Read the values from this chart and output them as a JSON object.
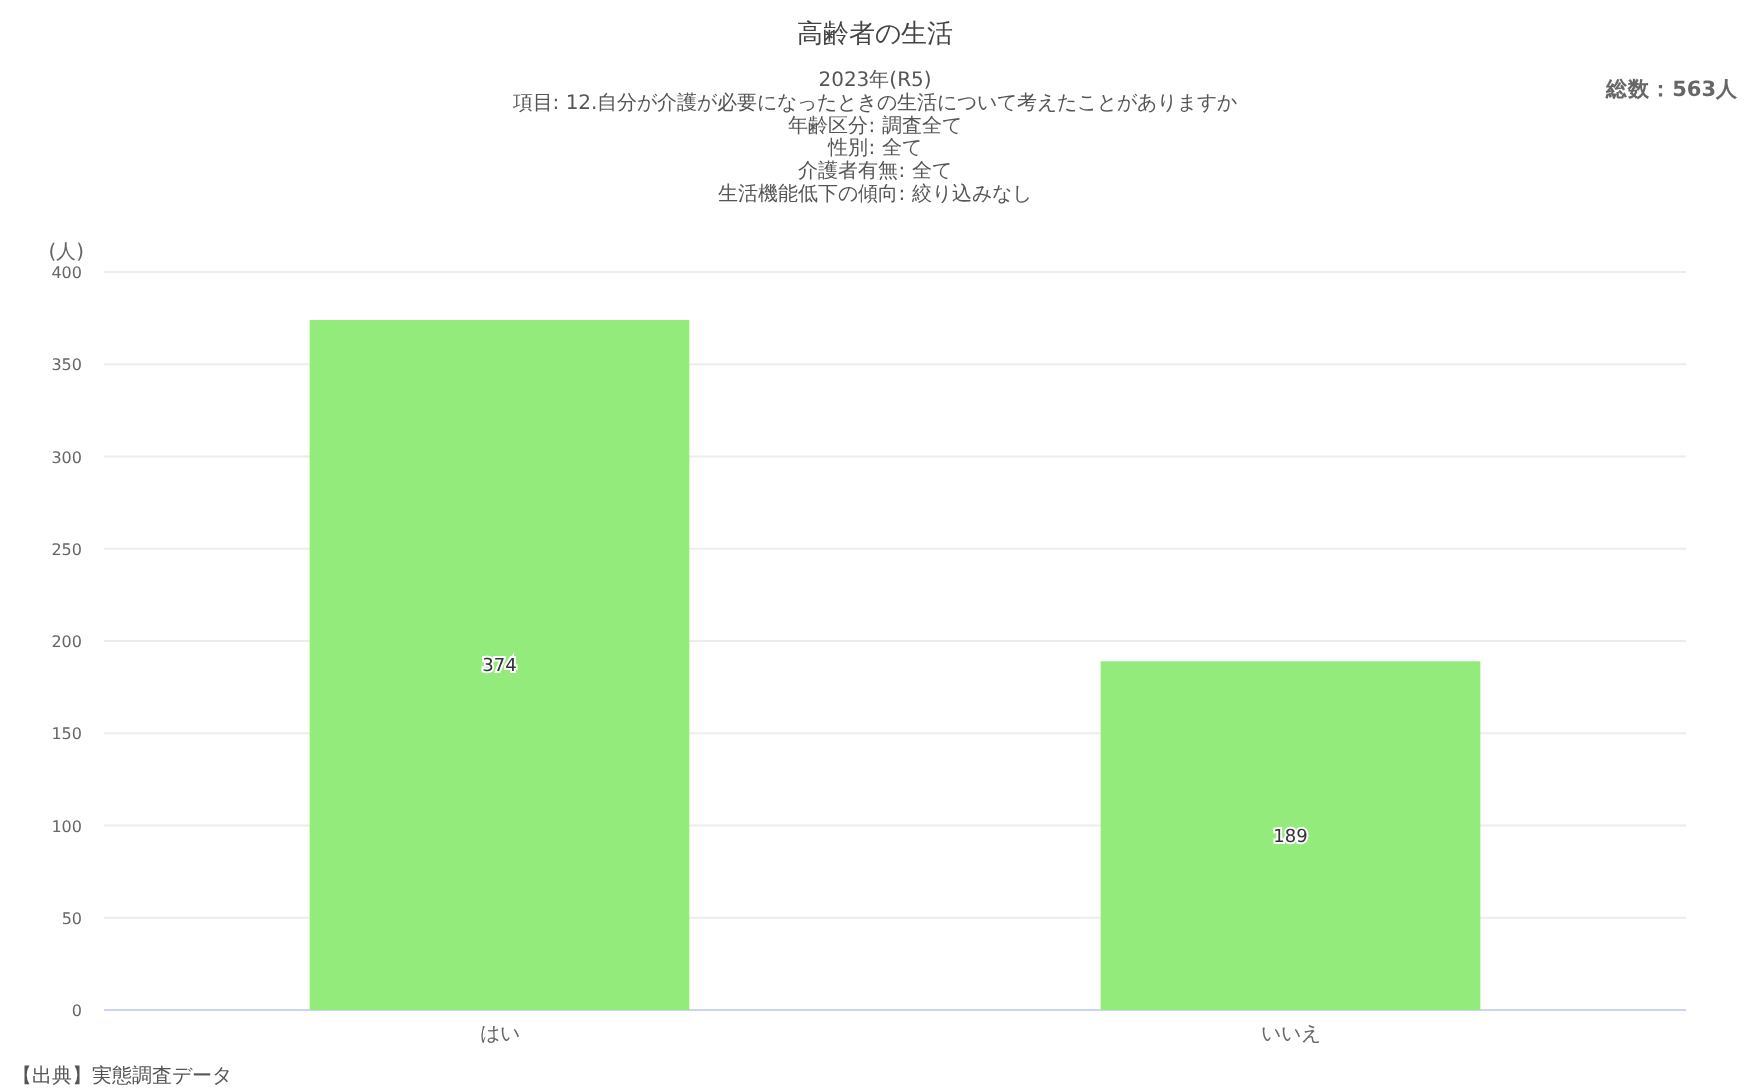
{
  "chart_data": {
    "type": "bar",
    "title": "高齢者の生活",
    "subtitle": "2023年(R5)",
    "ylabel": "(人)",
    "categories": [
      "はい",
      "いいえ"
    ],
    "values": [
      374,
      189
    ],
    "color": "#92eb7b",
    "ylim": [
      0,
      400
    ],
    "yticks": [
      0,
      50,
      100,
      150,
      200,
      250,
      300,
      350,
      400
    ],
    "grid": "y",
    "data_labels": true,
    "annotations": [
      "項目: 12.自分が介護が必要になったときの生活について考えたことがありますか",
      "年齢区分: 調査全て",
      "性別: 全て",
      "介護者有無: 全て",
      "生活機能低下の傾向: 絞り込みなし",
      "総数：563人",
      "【出典】実態調査データ"
    ]
  }
}
